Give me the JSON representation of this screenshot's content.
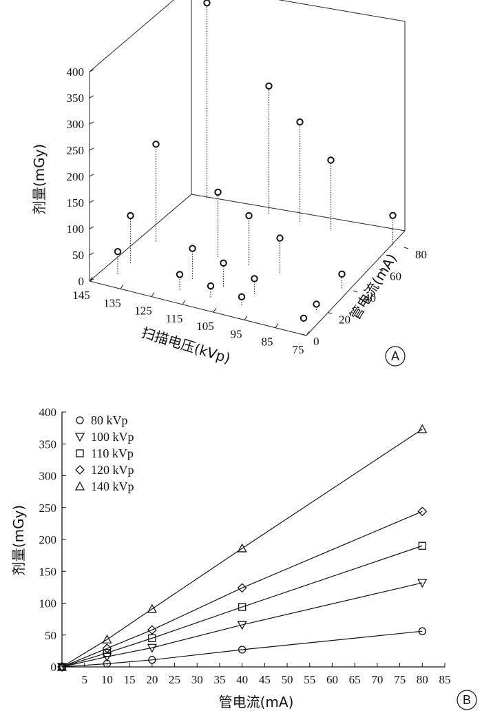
{
  "chart_data": [
    {
      "type": "scatter",
      "panel_label": "A",
      "xlabel": "扫描电压(kVp)",
      "ylabel": "管电流(mA)",
      "zlabel": "剂量(mGy)",
      "x_ticks": [
        "145",
        "135",
        "125",
        "115",
        "105",
        "95",
        "85",
        "75"
      ],
      "y_ticks": [
        "0",
        "20",
        "40",
        "60",
        "80"
      ],
      "z_ticks": [
        "0",
        "50",
        "100",
        "150",
        "200",
        "250",
        "300",
        "350",
        "400"
      ],
      "xlim": [
        75,
        145
      ],
      "ylim": [
        0,
        80
      ],
      "zlim": [
        0,
        400
      ],
      "marker": "circle",
      "stems": "dotted",
      "points": [
        {
          "kvp": 80,
          "ma": 10,
          "dose": 5
        },
        {
          "kvp": 80,
          "ma": 20,
          "dose": 11
        },
        {
          "kvp": 80,
          "ma": 40,
          "dose": 27
        },
        {
          "kvp": 80,
          "ma": 80,
          "dose": 56
        },
        {
          "kvp": 100,
          "ma": 10,
          "dose": 16
        },
        {
          "kvp": 100,
          "ma": 20,
          "dose": 30
        },
        {
          "kvp": 100,
          "ma": 40,
          "dose": 66
        },
        {
          "kvp": 100,
          "ma": 80,
          "dose": 132
        },
        {
          "kvp": 110,
          "ma": 10,
          "dose": 22
        },
        {
          "kvp": 110,
          "ma": 20,
          "dose": 45
        },
        {
          "kvp": 110,
          "ma": 40,
          "dose": 94
        },
        {
          "kvp": 110,
          "ma": 80,
          "dose": 190
        },
        {
          "kvp": 120,
          "ma": 10,
          "dose": 29
        },
        {
          "kvp": 120,
          "ma": 20,
          "dose": 58
        },
        {
          "kvp": 120,
          "ma": 40,
          "dose": 124
        },
        {
          "kvp": 120,
          "ma": 80,
          "dose": 244
        },
        {
          "kvp": 140,
          "ma": 10,
          "dose": 43
        },
        {
          "kvp": 140,
          "ma": 20,
          "dose": 91
        },
        {
          "kvp": 140,
          "ma": 40,
          "dose": 186
        },
        {
          "kvp": 140,
          "ma": 80,
          "dose": 373
        }
      ]
    },
    {
      "type": "line",
      "panel_label": "B",
      "xlabel": "管电流(mA)",
      "ylabel": "剂量(mGy)",
      "xlim": [
        0,
        85
      ],
      "ylim": [
        0,
        400
      ],
      "x_ticks": [
        "5",
        "10",
        "15",
        "20",
        "25",
        "30",
        "35",
        "40",
        "45",
        "50",
        "55",
        "60",
        "65",
        "70",
        "75",
        "80",
        "85"
      ],
      "y_ticks": [
        "0",
        "50",
        "100",
        "150",
        "200",
        "250",
        "300",
        "350",
        "400"
      ],
      "legend_position": "top-left",
      "x": [
        0,
        10,
        20,
        40,
        80
      ],
      "series": [
        {
          "name": "80 kVp",
          "marker": "circle",
          "values": [
            0,
            5,
            11,
            27,
            56
          ]
        },
        {
          "name": "100 kVp",
          "marker": "triangle-down",
          "values": [
            0,
            16,
            30,
            66,
            132
          ]
        },
        {
          "name": "110 kVp",
          "marker": "square",
          "values": [
            0,
            22,
            45,
            94,
            190
          ]
        },
        {
          "name": "120 kVp",
          "marker": "diamond",
          "values": [
            0,
            29,
            58,
            124,
            244
          ]
        },
        {
          "name": "140 kVp",
          "marker": "triangle-up",
          "values": [
            0,
            43,
            91,
            186,
            373
          ]
        }
      ]
    }
  ]
}
